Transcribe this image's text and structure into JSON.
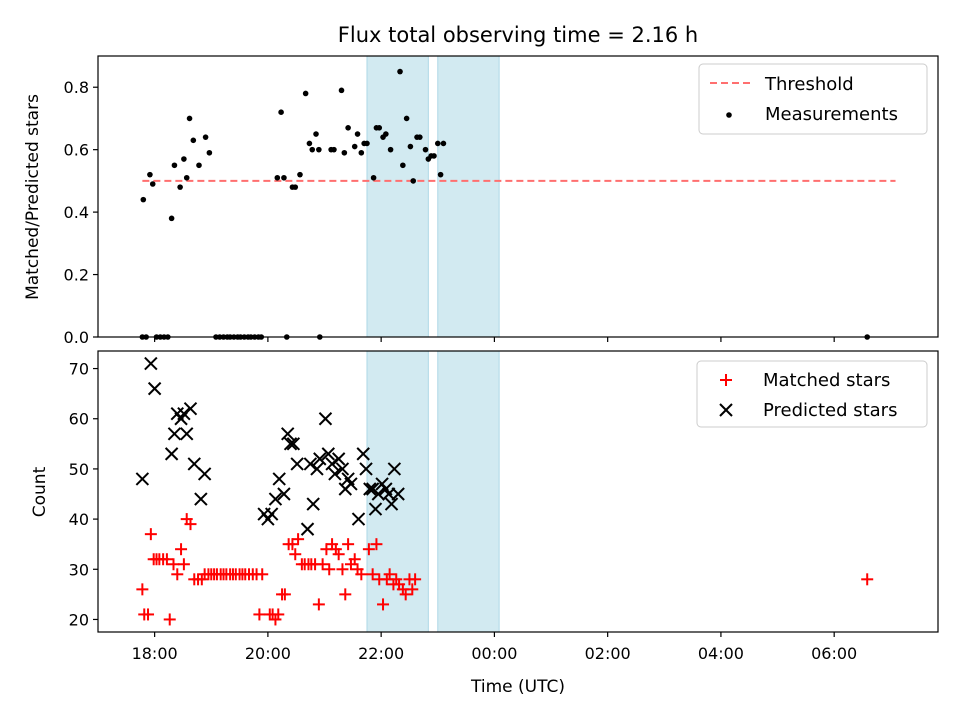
{
  "chart_data": {
    "type": "scatter",
    "title": "Flux total observing time = 2.16 h",
    "xlabel": "Time (UTC)",
    "x_unit": "hours (clock time, evening through next morning)",
    "x_range": [
      "17:00",
      "07:50"
    ],
    "x_ticks": [
      "18:00",
      "20:00",
      "22:00",
      "00:00",
      "02:00",
      "04:00",
      "06:00"
    ],
    "shaded_intervals": [
      [
        "21:45",
        "22:50"
      ],
      [
        "23:00",
        "00:05"
      ]
    ],
    "shade_color": "#add8e6",
    "top_panel": {
      "ylabel": "Matched/Predicted stars",
      "ylim": [
        0,
        0.9
      ],
      "y_ticks": [
        "0.0",
        "0.2",
        "0.4",
        "0.6",
        "0.8"
      ],
      "legend_position": "upper-right",
      "threshold": {
        "name": "Threshold",
        "value": 0.5,
        "x_range": [
          "17:47",
          "07:05"
        ],
        "color": "#ff6f6f"
      },
      "measurements_name": "Measurements",
      "measurements_color": "#000000",
      "measurements": [
        [
          "17:48",
          0.44
        ],
        [
          "17:55",
          0.52
        ],
        [
          "17:58",
          0.49
        ],
        [
          "18:18",
          0.38
        ],
        [
          "18:21",
          0.55
        ],
        [
          "18:27",
          0.48
        ],
        [
          "18:31",
          0.57
        ],
        [
          "18:34",
          0.51
        ],
        [
          "18:37",
          0.7
        ],
        [
          "18:41",
          0.63
        ],
        [
          "18:47",
          0.55
        ],
        [
          "18:54",
          0.64
        ],
        [
          "18:58",
          0.59
        ],
        [
          "20:10",
          0.51
        ],
        [
          "20:14",
          0.72
        ],
        [
          "20:17",
          0.51
        ],
        [
          "20:26",
          0.48
        ],
        [
          "20:29",
          0.48
        ],
        [
          "20:34",
          0.52
        ],
        [
          "20:40",
          0.78
        ],
        [
          "20:44",
          0.62
        ],
        [
          "20:47",
          0.6
        ],
        [
          "20:51",
          0.65
        ],
        [
          "20:54",
          0.6
        ],
        [
          "21:07",
          0.6
        ],
        [
          "21:10",
          0.6
        ],
        [
          "21:18",
          0.79
        ],
        [
          "21:21",
          0.59
        ],
        [
          "21:25",
          0.67
        ],
        [
          "21:32",
          0.61
        ],
        [
          "21:35",
          0.65
        ],
        [
          "21:39",
          0.59
        ],
        [
          "21:42",
          0.62
        ],
        [
          "21:45",
          0.62
        ],
        [
          "21:52",
          0.51
        ],
        [
          "21:55",
          0.67
        ],
        [
          "21:58",
          0.67
        ],
        [
          "22:02",
          0.64
        ],
        [
          "22:05",
          0.65
        ],
        [
          "22:10",
          0.6
        ],
        [
          "22:20",
          0.85
        ],
        [
          "22:23",
          0.55
        ],
        [
          "22:27",
          0.7
        ],
        [
          "22:31",
          0.61
        ],
        [
          "22:34",
          0.5
        ],
        [
          "22:38",
          0.64
        ],
        [
          "22:41",
          0.64
        ],
        [
          "22:47",
          0.6
        ],
        [
          "22:50",
          0.57
        ],
        [
          "22:53",
          0.58
        ],
        [
          "22:56",
          0.58
        ],
        [
          "23:00",
          0.62
        ],
        [
          "23:03",
          0.52
        ],
        [
          "23:06",
          0.62
        ],
        [
          "17:47",
          0.0
        ],
        [
          "17:51",
          0.0
        ],
        [
          "18:02",
          0.0
        ],
        [
          "18:06",
          0.0
        ],
        [
          "18:10",
          0.0
        ],
        [
          "18:14",
          0.0
        ],
        [
          "19:05",
          0.0
        ],
        [
          "19:09",
          0.0
        ],
        [
          "19:13",
          0.0
        ],
        [
          "19:17",
          0.0
        ],
        [
          "19:20",
          0.0
        ],
        [
          "19:24",
          0.0
        ],
        [
          "19:28",
          0.0
        ],
        [
          "19:31",
          0.0
        ],
        [
          "19:35",
          0.0
        ],
        [
          "19:39",
          0.0
        ],
        [
          "19:42",
          0.0
        ],
        [
          "19:46",
          0.0
        ],
        [
          "19:50",
          0.0
        ],
        [
          "19:53",
          0.0
        ],
        [
          "20:20",
          0.0
        ],
        [
          "20:55",
          0.0
        ],
        [
          "06:35",
          0.0
        ]
      ]
    },
    "bottom_panel": {
      "ylabel": "Count",
      "ylim": [
        17.5,
        73.5
      ],
      "y_ticks": [
        "20",
        "30",
        "40",
        "50",
        "60",
        "70"
      ],
      "legend_position": "upper-right",
      "series": [
        {
          "name": "Matched stars",
          "marker": "+",
          "color": "#ff0000",
          "points": [
            [
              "17:47",
              26
            ],
            [
              "17:49",
              21
            ],
            [
              "17:53",
              21
            ],
            [
              "17:56",
              37
            ],
            [
              "17:59",
              32
            ],
            [
              "18:02",
              32
            ],
            [
              "18:05",
              32
            ],
            [
              "18:09",
              32
            ],
            [
              "18:13",
              32
            ],
            [
              "18:16",
              20
            ],
            [
              "18:20",
              31
            ],
            [
              "18:24",
              29
            ],
            [
              "18:28",
              34
            ],
            [
              "18:31",
              31
            ],
            [
              "18:34",
              40
            ],
            [
              "18:38",
              39
            ],
            [
              "18:42",
              28
            ],
            [
              "18:46",
              28
            ],
            [
              "18:50",
              28
            ],
            [
              "18:53",
              29
            ],
            [
              "18:57",
              29
            ],
            [
              "19:00",
              29
            ],
            [
              "19:03",
              29
            ],
            [
              "19:06",
              29
            ],
            [
              "19:10",
              29
            ],
            [
              "19:13",
              29
            ],
            [
              "19:16",
              29
            ],
            [
              "19:20",
              29
            ],
            [
              "19:23",
              29
            ],
            [
              "19:26",
              29
            ],
            [
              "19:30",
              29
            ],
            [
              "19:33",
              29
            ],
            [
              "19:36",
              29
            ],
            [
              "19:40",
              29
            ],
            [
              "19:44",
              29
            ],
            [
              "19:48",
              29
            ],
            [
              "19:51",
              21
            ],
            [
              "19:54",
              29
            ],
            [
              "20:02",
              21
            ],
            [
              "20:05",
              21
            ],
            [
              "20:08",
              20
            ],
            [
              "20:11",
              21
            ],
            [
              "20:15",
              25
            ],
            [
              "20:18",
              25
            ],
            [
              "20:22",
              35
            ],
            [
              "20:26",
              35
            ],
            [
              "20:29",
              33
            ],
            [
              "20:32",
              36
            ],
            [
              "20:36",
              31
            ],
            [
              "20:39",
              31
            ],
            [
              "20:43",
              31
            ],
            [
              "20:46",
              31
            ],
            [
              "20:50",
              31
            ],
            [
              "20:54",
              23
            ],
            [
              "20:58",
              31
            ],
            [
              "21:02",
              34
            ],
            [
              "21:05",
              30
            ],
            [
              "21:08",
              35
            ],
            [
              "21:12",
              34
            ],
            [
              "21:15",
              33
            ],
            [
              "21:19",
              30
            ],
            [
              "21:22",
              25
            ],
            [
              "21:25",
              35
            ],
            [
              "21:28",
              31
            ],
            [
              "21:32",
              32
            ],
            [
              "21:35",
              30
            ],
            [
              "21:39",
              29
            ],
            [
              "21:47",
              34
            ],
            [
              "21:51",
              29
            ],
            [
              "21:55",
              35
            ],
            [
              "21:58",
              28
            ],
            [
              "22:02",
              23
            ],
            [
              "22:06",
              28
            ],
            [
              "22:09",
              29
            ],
            [
              "22:13",
              27
            ],
            [
              "22:16",
              28
            ],
            [
              "22:19",
              27
            ],
            [
              "22:23",
              26
            ],
            [
              "22:26",
              25
            ],
            [
              "22:30",
              28
            ],
            [
              "22:33",
              26
            ],
            [
              "22:36",
              28
            ],
            [
              "06:35",
              28
            ]
          ]
        },
        {
          "name": "Predicted stars",
          "marker": "x",
          "color": "#000000",
          "points": [
            [
              "17:47",
              48
            ],
            [
              "17:56",
              71
            ],
            [
              "18:00",
              66
            ],
            [
              "18:18",
              53
            ],
            [
              "18:21",
              57
            ],
            [
              "18:24",
              61
            ],
            [
              "18:28",
              60
            ],
            [
              "18:31",
              61
            ],
            [
              "18:34",
              57
            ],
            [
              "18:38",
              62
            ],
            [
              "18:42",
              51
            ],
            [
              "18:49",
              44
            ],
            [
              "18:53",
              49
            ],
            [
              "19:56",
              41
            ],
            [
              "20:00",
              40
            ],
            [
              "20:04",
              41
            ],
            [
              "20:08",
              44
            ],
            [
              "20:12",
              48
            ],
            [
              "20:17",
              45
            ],
            [
              "20:21",
              57
            ],
            [
              "20:24",
              55
            ],
            [
              "20:27",
              55
            ],
            [
              "20:31",
              51
            ],
            [
              "20:42",
              38
            ],
            [
              "20:45",
              51
            ],
            [
              "20:48",
              43
            ],
            [
              "20:52",
              50
            ],
            [
              "20:55",
              52
            ],
            [
              "21:01",
              60
            ],
            [
              "21:04",
              53
            ],
            [
              "21:08",
              51
            ],
            [
              "21:11",
              49
            ],
            [
              "21:15",
              52
            ],
            [
              "21:19",
              50
            ],
            [
              "21:22",
              46
            ],
            [
              "21:25",
              48
            ],
            [
              "21:28",
              47
            ],
            [
              "21:36",
              40
            ],
            [
              "21:41",
              53
            ],
            [
              "21:44",
              50
            ],
            [
              "21:48",
              46
            ],
            [
              "21:51",
              46
            ],
            [
              "21:54",
              42
            ],
            [
              "21:57",
              45
            ],
            [
              "22:01",
              47
            ],
            [
              "22:05",
              46
            ],
            [
              "22:08",
              45
            ],
            [
              "22:11",
              43
            ],
            [
              "22:14",
              50
            ],
            [
              "22:18",
              45
            ]
          ]
        }
      ]
    }
  }
}
